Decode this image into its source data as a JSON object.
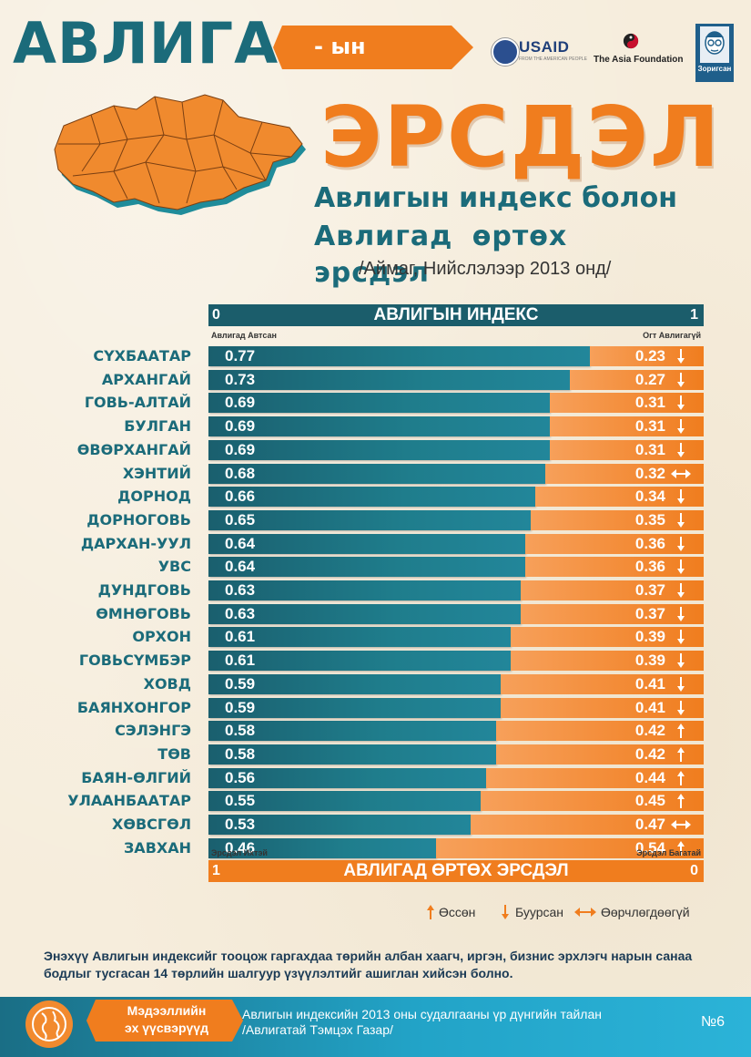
{
  "header": {
    "title_main": "АВЛИГА",
    "title_suffix": "- ын",
    "title_big": "ЭРСДЭЛ",
    "subtitle_line1": "Авлигын индекс болон",
    "subtitle_line2": "Авлигад өртөх эрсдэл",
    "subtitle_line3": "/Аймаг, Нийслэлээр 2013 онд/"
  },
  "logos": {
    "usaid": "USAID",
    "usaid_sub": "FROM THE AMERICAN PEOPLE",
    "asia_foundation": "The Asia Foundation",
    "zorigsan": "Зоригсан"
  },
  "colors": {
    "index": "#1b6b7a",
    "risk": "#f07d1e"
  },
  "chart_data": {
    "type": "bar",
    "orientation": "horizontal-stacked",
    "top_axis": {
      "title": "АВЛИГЫН ИНДЕКС",
      "min_label": "0",
      "max_label": "1",
      "left_caption": "Авлигад Автсан",
      "right_caption": "Огт Авлигагүй"
    },
    "bottom_axis": {
      "title": "АВЛИГАД ӨРТӨХ ЭРСДЭЛ",
      "min_label": "1",
      "max_label": "0",
      "left_caption": "Эрсдэл Ихтэй",
      "right_caption": "Эрсдэл Багатай"
    },
    "xlim": [
      0,
      1
    ],
    "categories": [
      "СҮХБААТАР",
      "АРХАНГАЙ",
      "ГОВЬ-АЛТАЙ",
      "БУЛГАН",
      "ӨВӨРХАНГАЙ",
      "ХЭНТИЙ",
      "ДОРНОД",
      "ДОРНОГОВЬ",
      "ДАРХАН-УУЛ",
      "УВС",
      "ДУНДГОВЬ",
      "ӨМНӨГОВЬ",
      "ОРХОН",
      "ГОВЬСҮМБЭР",
      "ХОВД",
      "БАЯНХОНГОР",
      "СЭЛЭНГЭ",
      "ТӨВ",
      "БАЯН-ӨЛГИЙ",
      "УЛААНБААТАР",
      "ХӨВСГӨЛ",
      "ЗАВХАН"
    ],
    "index_labels": [
      "0.77",
      "0.73",
      "0.69",
      "0.69",
      "0.69",
      "0.68",
      "0.66",
      "0.65",
      "0.64",
      "0.64",
      "0.63",
      "0.63",
      "0.61",
      "0.61",
      "0.59",
      "0.59",
      "0.58",
      "0.58",
      "0.56",
      "0.55",
      "0.53",
      "0.46"
    ],
    "risk_labels": [
      "0.23",
      "0.27",
      "0.31",
      "0.31",
      "0.31",
      "0.32",
      "0.34",
      "0.35",
      "0.36",
      "0.36",
      "0.37",
      "0.37",
      "0.39",
      "0.39",
      "0.41",
      "0.41",
      "0.42",
      "0.42",
      "0.44",
      "0.45",
      "0.47",
      "0.54"
    ],
    "series": [
      {
        "values": [
          0.77,
          0.73,
          0.69,
          0.69,
          0.69,
          0.68,
          0.66,
          0.65,
          0.64,
          0.64,
          0.63,
          0.63,
          0.61,
          0.61,
          0.59,
          0.59,
          0.58,
          0.58,
          0.56,
          0.55,
          0.53,
          0.46
        ]
      },
      {
        "values": [
          0.23,
          0.27,
          0.31,
          0.31,
          0.31,
          0.32,
          0.34,
          0.35,
          0.36,
          0.36,
          0.37,
          0.37,
          0.39,
          0.39,
          0.41,
          0.41,
          0.42,
          0.42,
          0.44,
          0.45,
          0.47,
          0.54
        ]
      }
    ],
    "trend": [
      "down",
      "down",
      "down",
      "down",
      "down",
      "same",
      "down",
      "down",
      "down",
      "down",
      "down",
      "down",
      "down",
      "down",
      "down",
      "down",
      "up",
      "up",
      "up",
      "up",
      "same",
      "up"
    ],
    "legend": [
      {
        "icon": "up-arrow-icon",
        "label": "Өссөн"
      },
      {
        "icon": "down-arrow-icon",
        "label": "Буурсан"
      },
      {
        "icon": "left-right-arrow-icon",
        "label": "Өөрчлөгдөөгүй"
      }
    ]
  },
  "footnote": "Энэхүү Авлигын индексийг тооцож гаргахдаа төрийн албан хаагч, иргэн, бизнис эрхлэгч нарын санаа бодлыг тусгасан 14 төрлийн шалгуур үзүүлэлтийг ашиглан хийсэн болно.",
  "footer": {
    "tag_line1": "Мэдээллийн",
    "tag_line2": "эх үүсвэрүүд",
    "source_line1": "Авлигын индексийн 2013 оны судалгааны үр дүнгийн тайлан",
    "source_line2": "/Авлигатай Тэмцэх Газар/",
    "page": "№6"
  }
}
